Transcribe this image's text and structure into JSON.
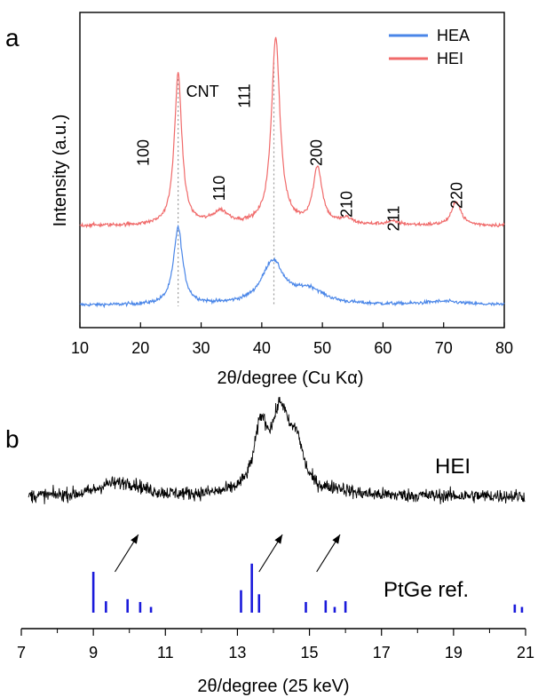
{
  "chart_data": [
    {
      "type": "line",
      "panel_label": "a",
      "xlabel": "2θ/degree (Cu Kα)",
      "ylabel": "Intensity (a.u.)",
      "xlim": [
        10,
        80
      ],
      "x_ticks": [
        "10",
        "20",
        "30",
        "40",
        "50",
        "60",
        "70",
        "80"
      ],
      "legend": {
        "placement": "top-right",
        "entries": [
          "HEA",
          "HEI"
        ]
      },
      "series": [
        {
          "name": "HEA",
          "color": "#4a86e8",
          "offset": 0,
          "baseline": 0.035,
          "noise": 0.006,
          "peaks": [
            {
              "x": 26.2,
              "height": 0.27,
              "width": 0.9
            },
            {
              "x": 41.8,
              "height": 0.15,
              "width": 2.2
            },
            {
              "x": 47.8,
              "height": 0.05,
              "width": 3.0
            },
            {
              "x": 70.0,
              "height": 0.012,
              "width": 4.0
            }
          ]
        },
        {
          "name": "HEI",
          "color": "#f06a6a",
          "offset": 0.28,
          "baseline": 0.035,
          "noise": 0.006,
          "peaks": [
            {
              "x": 26.2,
              "height": 0.53,
              "width": 0.75
            },
            {
              "x": 33.2,
              "height": 0.045,
              "width": 1.6
            },
            {
              "x": 42.3,
              "height": 0.66,
              "width": 0.85
            },
            {
              "x": 49.2,
              "height": 0.2,
              "width": 0.9
            },
            {
              "x": 54.0,
              "height": 0.02,
              "width": 1.2
            },
            {
              "x": 61.6,
              "height": 0.012,
              "width": 1.5
            },
            {
              "x": 72.1,
              "height": 0.085,
              "width": 0.9
            }
          ]
        }
      ],
      "annotations": [
        {
          "text": "CNT",
          "x": 26.2,
          "kind": "horizontal"
        },
        {
          "text": "100",
          "x": 20.5,
          "kind": "vertical"
        },
        {
          "text": "110",
          "x": 33.0,
          "kind": "vertical"
        },
        {
          "text": "111",
          "x": 37.2,
          "kind": "vertical"
        },
        {
          "text": "200",
          "x": 49.0,
          "kind": "vertical"
        },
        {
          "text": "210",
          "x": 54.0,
          "kind": "vertical"
        },
        {
          "text": "211",
          "x": 61.8,
          "kind": "vertical"
        },
        {
          "text": "220",
          "x": 72.2,
          "kind": "vertical"
        }
      ],
      "reference_lines_x": [
        26.2,
        42.0
      ]
    },
    {
      "type": "line",
      "panel_label": "b",
      "xlabel": "2θ/degree (25 keV)",
      "xlim": [
        7,
        21
      ],
      "x_ticks": [
        "7",
        "9",
        "11",
        "13",
        "15",
        "17",
        "19",
        "21"
      ],
      "series": [
        {
          "name": "HEI",
          "color": "#000000",
          "baseline": 0.3,
          "noise": 0.045,
          "peaks": [
            {
              "x": 9.4,
              "height": 0.05,
              "width": 0.4
            },
            {
              "x": 10.0,
              "height": 0.07,
              "width": 0.5
            },
            {
              "x": 13.65,
              "height": 0.4,
              "width": 0.22
            },
            {
              "x": 14.2,
              "height": 0.52,
              "width": 0.3
            },
            {
              "x": 14.65,
              "height": 0.26,
              "width": 0.22
            },
            {
              "x": 15.8,
              "height": 0.03,
              "width": 0.3
            }
          ]
        }
      ],
      "reference": {
        "name": "PtGe ref.",
        "color": "#1a1adb",
        "sticks": [
          {
            "x": 9.0,
            "h": 1.0
          },
          {
            "x": 9.35,
            "h": 0.28
          },
          {
            "x": 9.95,
            "h": 0.33
          },
          {
            "x": 10.3,
            "h": 0.26
          },
          {
            "x": 10.6,
            "h": 0.14
          },
          {
            "x": 13.1,
            "h": 0.55
          },
          {
            "x": 13.4,
            "h": 1.2
          },
          {
            "x": 13.6,
            "h": 0.45
          },
          {
            "x": 14.9,
            "h": 0.26
          },
          {
            "x": 15.45,
            "h": 0.3
          },
          {
            "x": 15.7,
            "h": 0.14
          },
          {
            "x": 16.0,
            "h": 0.28
          },
          {
            "x": 20.7,
            "h": 0.2
          },
          {
            "x": 20.9,
            "h": 0.14
          }
        ]
      },
      "arrows": [
        {
          "x_from": 9.6,
          "x_to": 10.25
        },
        {
          "x_from": 13.6,
          "x_to": 14.25
        },
        {
          "x_from": 15.2,
          "x_to": 15.85
        }
      ]
    }
  ]
}
